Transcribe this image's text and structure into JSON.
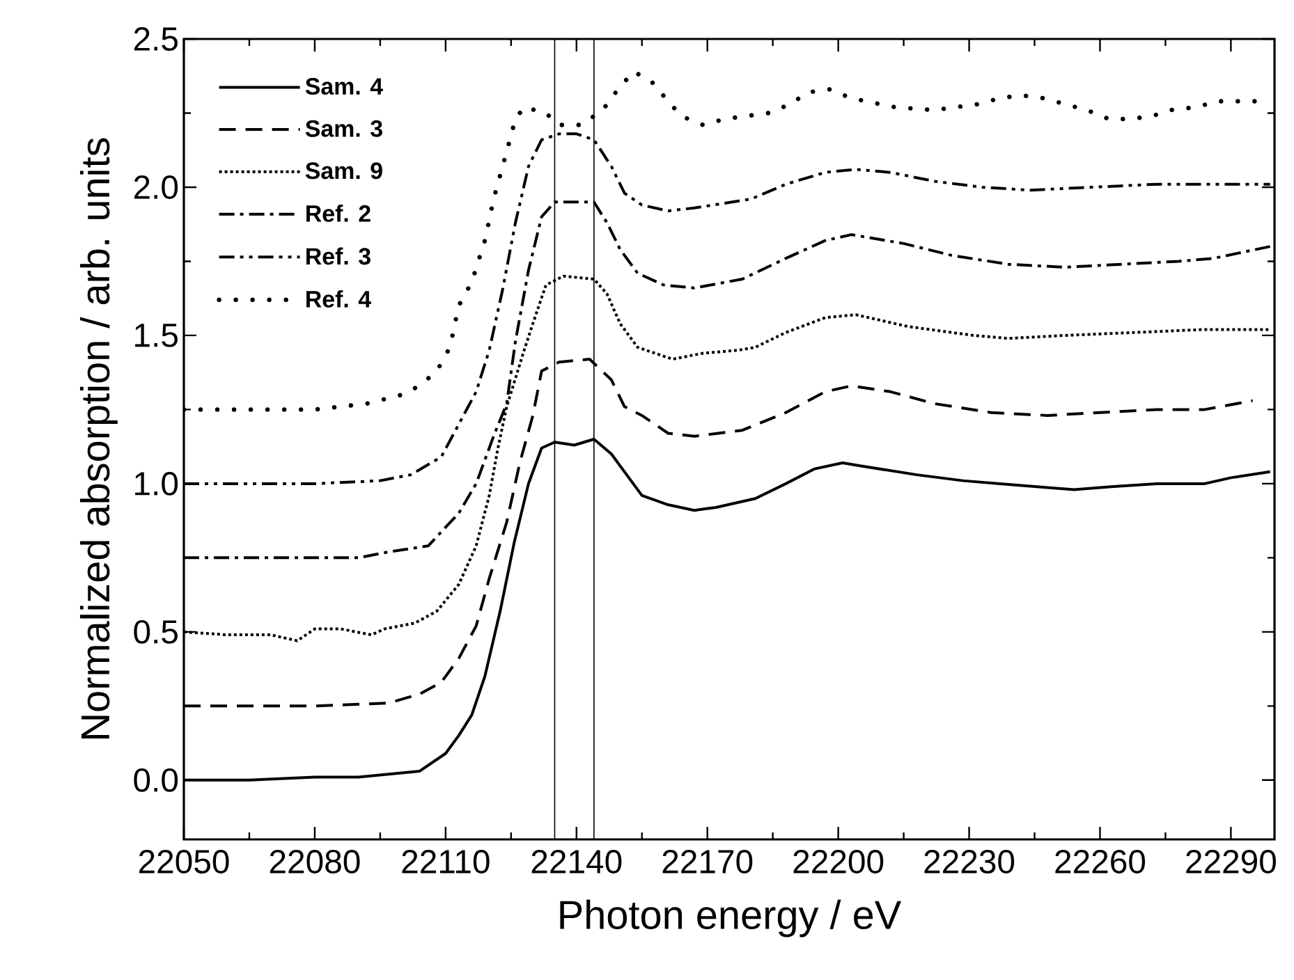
{
  "chart_data": {
    "type": "line",
    "xlabel": "Photon energy / eV",
    "ylabel": "Normalized absorption / arb. units",
    "xlim": [
      22050,
      22300
    ],
    "ylim": [
      -0.2,
      2.5
    ],
    "xticks": [
      22050,
      22080,
      22110,
      22140,
      22170,
      22200,
      22230,
      22260,
      22290
    ],
    "yticks": [
      {
        "value": 0,
        "label": "0.0"
      },
      {
        "value": 0.5,
        "label": "0.5"
      },
      {
        "value": 1,
        "label": "1.0"
      },
      {
        "value": 1.5,
        "label": "1.5"
      },
      {
        "value": 2,
        "label": "2.0"
      },
      {
        "value": 2.5,
        "label": "2.5"
      }
    ],
    "legend": "top left",
    "ref_lines": [
      {
        "axis": "x",
        "value": 22135,
        "color": "#000000"
      },
      {
        "axis": "x",
        "value": 22144,
        "color": "#000000"
      }
    ],
    "series": [
      {
        "name": "Sam. 4",
        "color": "#000000",
        "line_style": "solid",
        "x": [
          22050,
          22065,
          22080,
          22090,
          22097,
          22104,
          22110,
          22113,
          22116,
          22119,
          22122.5,
          22125.7,
          22129,
          22132,
          22135,
          22139.5,
          22144,
          22148,
          22151,
          22155,
          22160.7,
          22167,
          22172,
          22181,
          22188,
          22194.6,
          22201,
          22205,
          22218,
          22228.6,
          22237,
          22254,
          22262.6,
          22273,
          22284,
          22290,
          22299
        ],
        "values": [
          0.0,
          0.0,
          0.01,
          0.01,
          0.02,
          0.03,
          0.09,
          0.15,
          0.22,
          0.35,
          0.57,
          0.8,
          1.0,
          1.12,
          1.14,
          1.13,
          1.15,
          1.1,
          1.04,
          0.96,
          0.93,
          0.91,
          0.92,
          0.95,
          1.0,
          1.05,
          1.07,
          1.06,
          1.03,
          1.01,
          1.0,
          0.98,
          0.99,
          1.0,
          1.0,
          1.02,
          1.04
        ]
      },
      {
        "name": "Sam. 3",
        "color": "#000000",
        "line_style": "dashed",
        "x": [
          22050,
          22080,
          22097,
          22104,
          22109,
          22113,
          22117,
          22120,
          22124,
          22127,
          22130,
          22132,
          22136,
          22143,
          22148,
          22151,
          22155,
          22161,
          22167,
          22178,
          22188,
          22197,
          22203,
          22212,
          22222,
          22235,
          22248,
          22260,
          22273,
          22284,
          22295
        ],
        "values": [
          0.25,
          0.25,
          0.26,
          0.29,
          0.33,
          0.41,
          0.52,
          0.68,
          0.87,
          1.07,
          1.23,
          1.38,
          1.41,
          1.42,
          1.35,
          1.26,
          1.23,
          1.17,
          1.16,
          1.18,
          1.24,
          1.31,
          1.33,
          1.31,
          1.27,
          1.24,
          1.23,
          1.24,
          1.25,
          1.25,
          1.28
        ]
      },
      {
        "name": "Sam. 9",
        "color": "#000000",
        "line_style": "dotted",
        "x": [
          22050,
          22060,
          22070,
          22076,
          22080,
          22086,
          22093,
          22096,
          22103,
          22108,
          22113,
          22117,
          22120,
          22122,
          22124,
          22128,
          22130,
          22133,
          22137,
          22144,
          22147,
          22150,
          22154,
          22162,
          22169,
          22177,
          22181,
          22188,
          22197,
          22204,
          22216,
          22231,
          22239,
          22252,
          22268,
          22284,
          22299
        ],
        "values": [
          0.5,
          0.49,
          0.49,
          0.47,
          0.51,
          0.51,
          0.49,
          0.51,
          0.53,
          0.57,
          0.66,
          0.79,
          0.96,
          1.12,
          1.26,
          1.45,
          1.54,
          1.67,
          1.7,
          1.69,
          1.64,
          1.54,
          1.46,
          1.42,
          1.44,
          1.45,
          1.46,
          1.51,
          1.56,
          1.57,
          1.53,
          1.5,
          1.49,
          1.5,
          1.51,
          1.52,
          1.52
        ]
      },
      {
        "name": "Ref. 2",
        "color": "#000000",
        "line_style": "dashdot",
        "x": [
          22050,
          22090,
          22097,
          22106,
          22113,
          22117,
          22121,
          22124,
          22126,
          22129,
          22132,
          22135,
          22140,
          22144,
          22147,
          22150,
          22154,
          22160,
          22167,
          22178,
          22188,
          22197,
          22203,
          22215,
          22226,
          22239,
          22252,
          22265,
          22278,
          22286,
          22299
        ],
        "values": [
          0.75,
          0.75,
          0.77,
          0.79,
          0.9,
          1.0,
          1.16,
          1.27,
          1.48,
          1.72,
          1.9,
          1.95,
          1.95,
          1.95,
          1.88,
          1.79,
          1.71,
          1.67,
          1.66,
          1.69,
          1.76,
          1.82,
          1.84,
          1.81,
          1.77,
          1.74,
          1.73,
          1.74,
          1.75,
          1.76,
          1.8
        ]
      },
      {
        "name": "Ref. 3",
        "color": "#000000",
        "line_style": "dashdotdot",
        "x": [
          22050,
          22080,
          22095,
          22102,
          22109,
          22113,
          22117,
          22120,
          22123,
          22126,
          22129,
          22132,
          22136,
          22140,
          22144,
          22148,
          22151,
          22155,
          22161,
          22167,
          22180,
          22188,
          22197,
          22204,
          22212,
          22222,
          22233,
          22244,
          22258,
          22273,
          22286,
          22299
        ],
        "values": [
          1.0,
          1.0,
          1.01,
          1.03,
          1.09,
          1.2,
          1.31,
          1.45,
          1.65,
          1.88,
          2.07,
          2.16,
          2.18,
          2.18,
          2.16,
          2.07,
          1.98,
          1.94,
          1.92,
          1.93,
          1.96,
          2.01,
          2.05,
          2.06,
          2.05,
          2.02,
          2.0,
          1.99,
          2.0,
          2.01,
          2.01,
          2.01
        ]
      },
      {
        "name": "Ref. 4",
        "color": "#000000",
        "line_style": "loosely dotted",
        "x": [
          22050,
          22080,
          22092,
          22100,
          22104,
          22108,
          22111,
          22113,
          22116,
          22119,
          22121,
          22124,
          22126,
          22128,
          22133,
          22136,
          22141,
          22146,
          22149,
          22153,
          22157,
          22161,
          22164,
          22169,
          22174,
          22184,
          22189,
          22193,
          22198,
          22203,
          22213,
          22222,
          22232,
          22237,
          22242,
          22247,
          22252,
          22257,
          22262,
          22267,
          22272,
          22276,
          22282,
          22287,
          22297
        ],
        "values": [
          1.25,
          1.25,
          1.27,
          1.3,
          1.33,
          1.38,
          1.46,
          1.6,
          1.68,
          1.82,
          1.96,
          2.12,
          2.23,
          2.27,
          2.25,
          2.21,
          2.21,
          2.26,
          2.32,
          2.39,
          2.36,
          2.29,
          2.24,
          2.21,
          2.23,
          2.25,
          2.28,
          2.32,
          2.33,
          2.3,
          2.27,
          2.26,
          2.28,
          2.3,
          2.31,
          2.3,
          2.28,
          2.26,
          2.23,
          2.23,
          2.24,
          2.26,
          2.27,
          2.29,
          2.29
        ]
      }
    ]
  }
}
